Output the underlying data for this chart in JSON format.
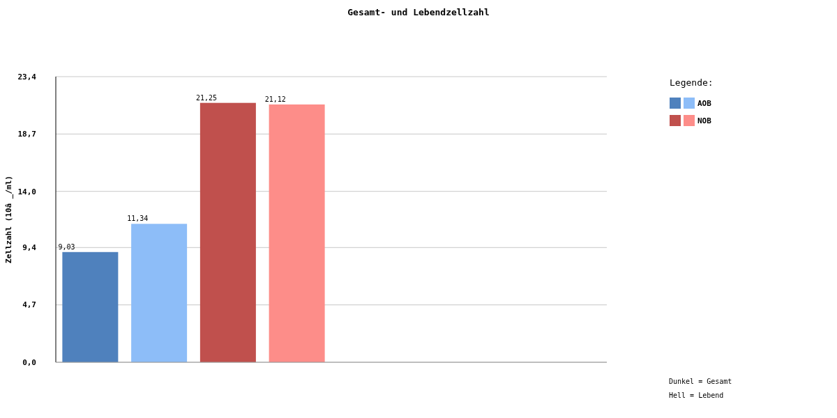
{
  "chart_data": {
    "type": "bar",
    "stacked": true,
    "title": "Gesamt- und Lebendzellzahl",
    "ylabel": "Zellzahl (10â _/ml)",
    "legend_title": "Legende:",
    "categories": [
      null,
      null,
      null,
      null,
      null,
      null,
      null,
      null
    ],
    "series": [
      {
        "color": "#4f81bd",
        "values": [
          9.03,
          null,
          null,
          null,
          null,
          null,
          null,
          null
        ],
        "value_labels": [
          "9,03",
          null,
          null,
          null,
          null,
          null,
          null,
          null
        ]
      },
      {
        "name": "AOB",
        "color": "#8dbdf8",
        "values": [
          null,
          11.34,
          null,
          null,
          null,
          null,
          null,
          null
        ],
        "value_labels": [
          null,
          "11,34",
          null,
          null,
          null,
          null,
          null,
          null
        ]
      },
      {
        "color": "#c0504d",
        "values": [
          null,
          null,
          21.25,
          null,
          null,
          null,
          null,
          null
        ],
        "value_labels": [
          null,
          null,
          "21,25",
          null,
          null,
          null,
          null,
          null
        ]
      },
      {
        "name": "NOB",
        "color": "#fd8d89",
        "values": [
          null,
          null,
          null,
          21.12,
          null,
          null,
          null,
          null
        ],
        "value_labels": [
          null,
          null,
          null,
          "21,12",
          null,
          null,
          null,
          null
        ]
      }
    ],
    "ylim": [
      0,
      23.4
    ],
    "yticks": [
      {
        "value": 0,
        "label": "0,0"
      },
      {
        "value": 4.7,
        "label": "4,7"
      },
      {
        "value": 9.4,
        "label": "9,4"
      },
      {
        "value": 14.0,
        "label": "14,0"
      },
      {
        "value": 18.7,
        "label": "18,7"
      },
      {
        "value": 23.4,
        "label": "23,4"
      }
    ],
    "grid": "y",
    "legend": "right",
    "annotations": [
      "Dunkel = Gesamt",
      "Hell = Lebend"
    ]
  }
}
